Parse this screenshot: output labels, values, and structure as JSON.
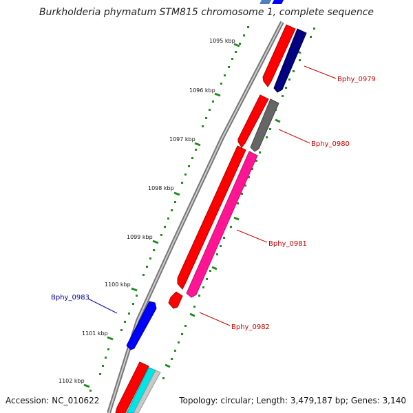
{
  "title": "Burkholderia phymatum STM815 chromosome 1, complete sequence",
  "footer": {
    "accession": "Accession: NC_010622",
    "summary": "Topology: circular; Length: 3,479,187 bp; Genes: 3,140"
  },
  "ticks": [
    {
      "label": "1095 kbp"
    },
    {
      "label": "1096 kbp"
    },
    {
      "label": "1097 kbp"
    },
    {
      "label": "1098 kbp"
    },
    {
      "label": "1099 kbp"
    },
    {
      "label": "1100 kbp"
    },
    {
      "label": "1101 kbp"
    },
    {
      "label": "1102 kbp"
    }
  ],
  "genes": [
    {
      "name": "Bphy_0979",
      "color": "#000080",
      "label_color": "#cc0000"
    },
    {
      "name": "Bphy_0980",
      "color": "#666666",
      "label_color": "#cc0000"
    },
    {
      "name": "Bphy_0981",
      "color": "#ff1493",
      "label_color": "#cc0000"
    },
    {
      "name": "Bphy_0982",
      "color": "#ff0000",
      "label_color": "#cc0000"
    },
    {
      "name": "Bphy_0983",
      "color": "#0000ff",
      "label_color": "#000099"
    }
  ],
  "colors": {
    "backbone": "#8c8c8c",
    "tick": "#228b22",
    "gene_red": "#ff0000"
  }
}
